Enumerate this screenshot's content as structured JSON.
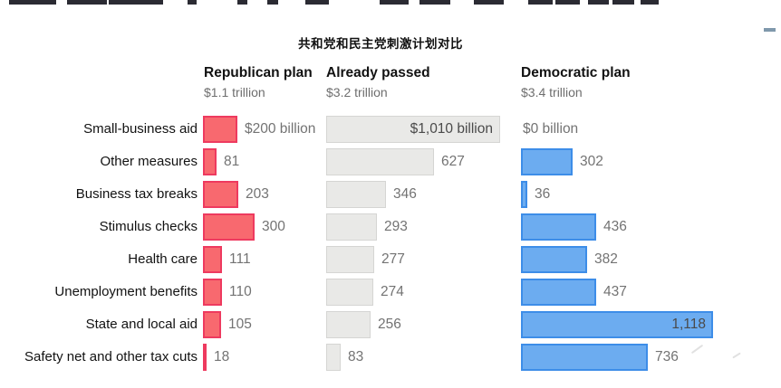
{
  "title": "共和党和民主党刺激计划对比",
  "columns": [
    {
      "label": "Republican plan",
      "total": "$1.1 trillion",
      "color": "#f8696f",
      "border_color": "#ee3a5f"
    },
    {
      "label": "Already passed",
      "total": "$3.2 trillion",
      "color": "#e9e9e7",
      "border_color": "#d5d5d3"
    },
    {
      "label": "Democratic plan",
      "total": "$3.4 trillion",
      "color": "#6cacf0",
      "border_color": "#3d8de8"
    }
  ],
  "chart_data": {
    "type": "bar",
    "orientation": "horizontal",
    "title": "共和党和民主党刺激计划对比",
    "unit": "billions of US dollars",
    "value_range": [
      0,
      1118
    ],
    "categories": [
      "Small-business aid",
      "Other measures",
      "Business tax breaks",
      "Stimulus checks",
      "Health care",
      "Unemployment benefits",
      "State and local aid",
      "Safety net and other tax cuts"
    ],
    "series": [
      {
        "name": "Republican plan",
        "total": "$1.1 trillion",
        "values": [
          200,
          81,
          203,
          300,
          111,
          110,
          105,
          18
        ],
        "labels": [
          "$200 billion",
          "81",
          "203",
          "300",
          "111",
          "110",
          "105",
          "18"
        ],
        "inside": [
          false,
          false,
          false,
          false,
          false,
          false,
          false,
          false
        ]
      },
      {
        "name": "Already passed",
        "total": "$3.2 trillion",
        "values": [
          1010,
          627,
          346,
          293,
          277,
          274,
          256,
          83
        ],
        "labels": [
          "$1,010 billion",
          "627",
          "346",
          "293",
          "277",
          "274",
          "256",
          "83"
        ],
        "inside": [
          true,
          false,
          false,
          false,
          false,
          false,
          false,
          false
        ]
      },
      {
        "name": "Democratic plan",
        "total": "$3.4 trillion",
        "values": [
          0,
          302,
          36,
          436,
          382,
          437,
          1118,
          736
        ],
        "labels": [
          "$0 billion",
          "302",
          "36",
          "436",
          "382",
          "437",
          "1,118",
          "736"
        ],
        "inside": [
          false,
          false,
          false,
          false,
          false,
          false,
          true,
          false
        ]
      }
    ],
    "legend_position": "top-as-column-headers",
    "grid": false
  },
  "decorations": {
    "top_strip_segments": [
      [
        10,
        52
      ],
      [
        74,
        44
      ],
      [
        120,
        60
      ],
      [
        207,
        10
      ],
      [
        262,
        11
      ],
      [
        295,
        12
      ],
      [
        337,
        26
      ],
      [
        419,
        32
      ],
      [
        463,
        34
      ],
      [
        523,
        33
      ],
      [
        583,
        27
      ],
      [
        613,
        27
      ],
      [
        649,
        23
      ],
      [
        676,
        24
      ],
      [
        707,
        20
      ]
    ],
    "top_strip_color": "#2b2b33",
    "top_dash_color": "#7f98ac"
  }
}
